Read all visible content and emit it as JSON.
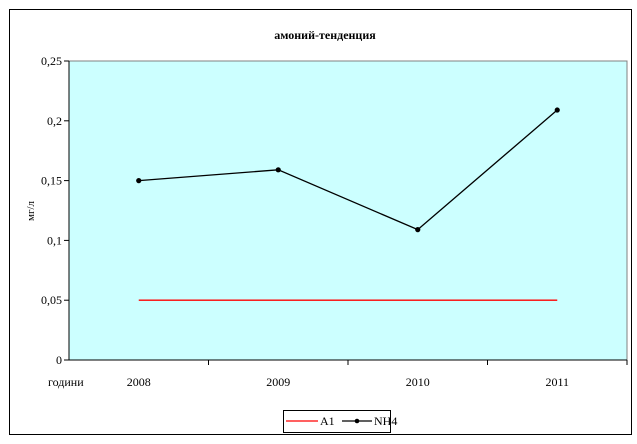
{
  "chart_data": {
    "type": "line",
    "title": "амоний-тенденция",
    "ylabel": "мг/л",
    "x_axis_label": "години",
    "categories": [
      "2008",
      "2009",
      "2010",
      "2011"
    ],
    "ylim": [
      0,
      0.25
    ],
    "yticks": [
      0,
      0.05,
      0.1,
      0.15,
      0.2,
      0.25
    ],
    "ytick_labels": [
      "0",
      "0,05",
      "0,1",
      "0,15",
      "0,2",
      "0,25"
    ],
    "grid": false,
    "legend_position": "bottom",
    "plot_background": "#CCFFFF",
    "series": [
      {
        "name": "A1",
        "values": [
          0.05,
          0.05,
          0.05,
          0.05
        ],
        "color": "#FF0000",
        "markers": false
      },
      {
        "name": "NH4",
        "values": [
          0.15,
          0.159,
          0.109,
          0.209
        ],
        "color": "#000000",
        "markers": true
      }
    ]
  }
}
